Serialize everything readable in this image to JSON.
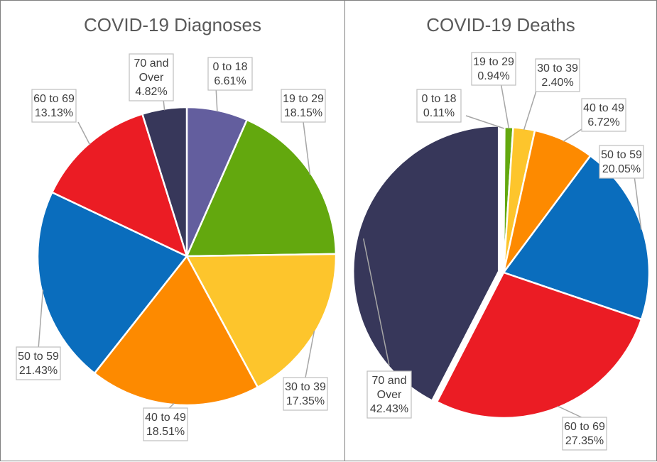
{
  "chart_data": [
    {
      "type": "pie",
      "title": "COVID-19 Diagnoses",
      "categories": [
        "0 to 18",
        "19 to 29",
        "30 to 39",
        "40 to 49",
        "50 to 59",
        "60 to 69",
        "70 and Over"
      ],
      "values": [
        6.61,
        18.15,
        17.35,
        18.51,
        21.43,
        13.13,
        4.82
      ],
      "value_labels": [
        "6.61%",
        "18.15%",
        "17.35%",
        "18.51%",
        "21.43%",
        "13.13%",
        "4.82%"
      ],
      "colors": [
        "#635e9e",
        "#63a80e",
        "#fdc52c",
        "#fd8a00",
        "#0a6dbd",
        "#eb1c24",
        "#37375a"
      ],
      "legend": "none",
      "data_labels": "outside with leader lines"
    },
    {
      "type": "pie",
      "title": "COVID-19 Deaths",
      "categories": [
        "0 to 18",
        "19 to 29",
        "30 to 39",
        "40 to 49",
        "50 to 59",
        "60 to 69",
        "70 and Over"
      ],
      "values": [
        0.11,
        0.94,
        2.4,
        6.72,
        20.05,
        27.35,
        42.43
      ],
      "value_labels": [
        "0.11%",
        "0.94%",
        "2.40%",
        "6.72%",
        "20.05%",
        "27.35%",
        "42.43%"
      ],
      "colors": [
        "#635e9e",
        "#63a80e",
        "#fdc52c",
        "#fd8a00",
        "#0a6dbd",
        "#eb1c24",
        "#37375a"
      ],
      "legend": "none",
      "data_labels": "outside with leader lines"
    }
  ]
}
